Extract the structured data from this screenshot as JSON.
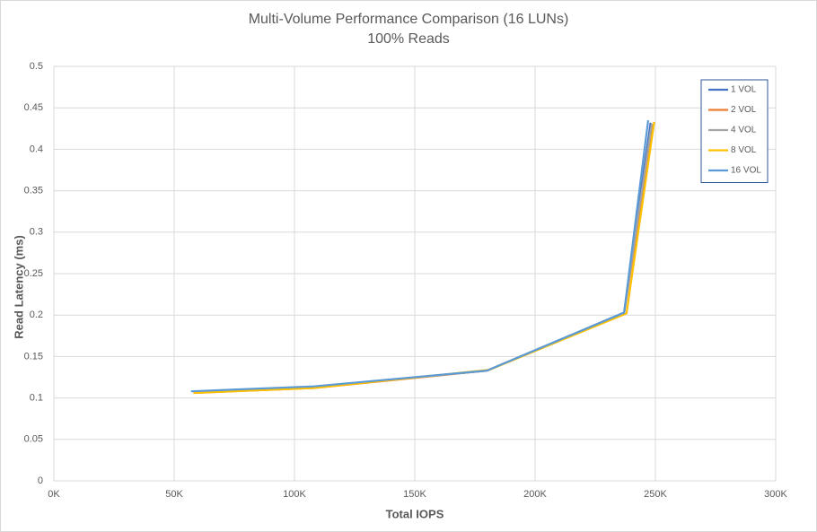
{
  "chart_data": {
    "type": "line",
    "title": "Multi-Volume Performance Comparison (16 LUNs)",
    "subtitle": "100% Reads",
    "x_label": "Total IOPS",
    "y_label": "Read Latency (ms)",
    "xlim": [
      0,
      300000
    ],
    "xticks": [
      {
        "value": 0,
        "label": "0K"
      },
      {
        "value": 50000,
        "label": "50K"
      },
      {
        "value": 100000,
        "label": "100K"
      },
      {
        "value": 150000,
        "label": "150K"
      },
      {
        "value": 200000,
        "label": "200K"
      },
      {
        "value": 250000,
        "label": "250K"
      },
      {
        "value": 300000,
        "label": "300K"
      }
    ],
    "ylim": [
      0,
      0.5
    ],
    "yticks": [
      0,
      0.05,
      0.1,
      0.15,
      0.2,
      0.25,
      0.3,
      0.35,
      0.4,
      0.45,
      0.5
    ],
    "grid": true,
    "legend": "top-right",
    "series": [
      {
        "name": "1 VOL",
        "color": "#4472c4",
        "x": [
          58000,
          108000,
          180000,
          237000,
          248000
        ],
        "values": [
          0.107,
          0.113,
          0.133,
          0.203,
          0.432
        ]
      },
      {
        "name": "2 VOL",
        "color": "#ed7d31",
        "x": [
          58000,
          108000,
          180000,
          237000,
          249000
        ],
        "values": [
          0.106,
          0.112,
          0.133,
          0.202,
          0.43
        ]
      },
      {
        "name": "4 VOL",
        "color": "#a5a5a5",
        "x": [
          58000,
          108000,
          180000,
          237000,
          248500
        ],
        "values": [
          0.107,
          0.113,
          0.133,
          0.203,
          0.431
        ]
      },
      {
        "name": "8 VOL",
        "color": "#ffc000",
        "x": [
          58000,
          108000,
          181000,
          238000,
          249500
        ],
        "values": [
          0.106,
          0.112,
          0.134,
          0.202,
          0.433
        ]
      },
      {
        "name": "16 VOL",
        "color": "#5b9bd5",
        "x": [
          57000,
          108000,
          180000,
          237000,
          247000
        ],
        "values": [
          0.108,
          0.114,
          0.133,
          0.203,
          0.435
        ]
      }
    ]
  }
}
